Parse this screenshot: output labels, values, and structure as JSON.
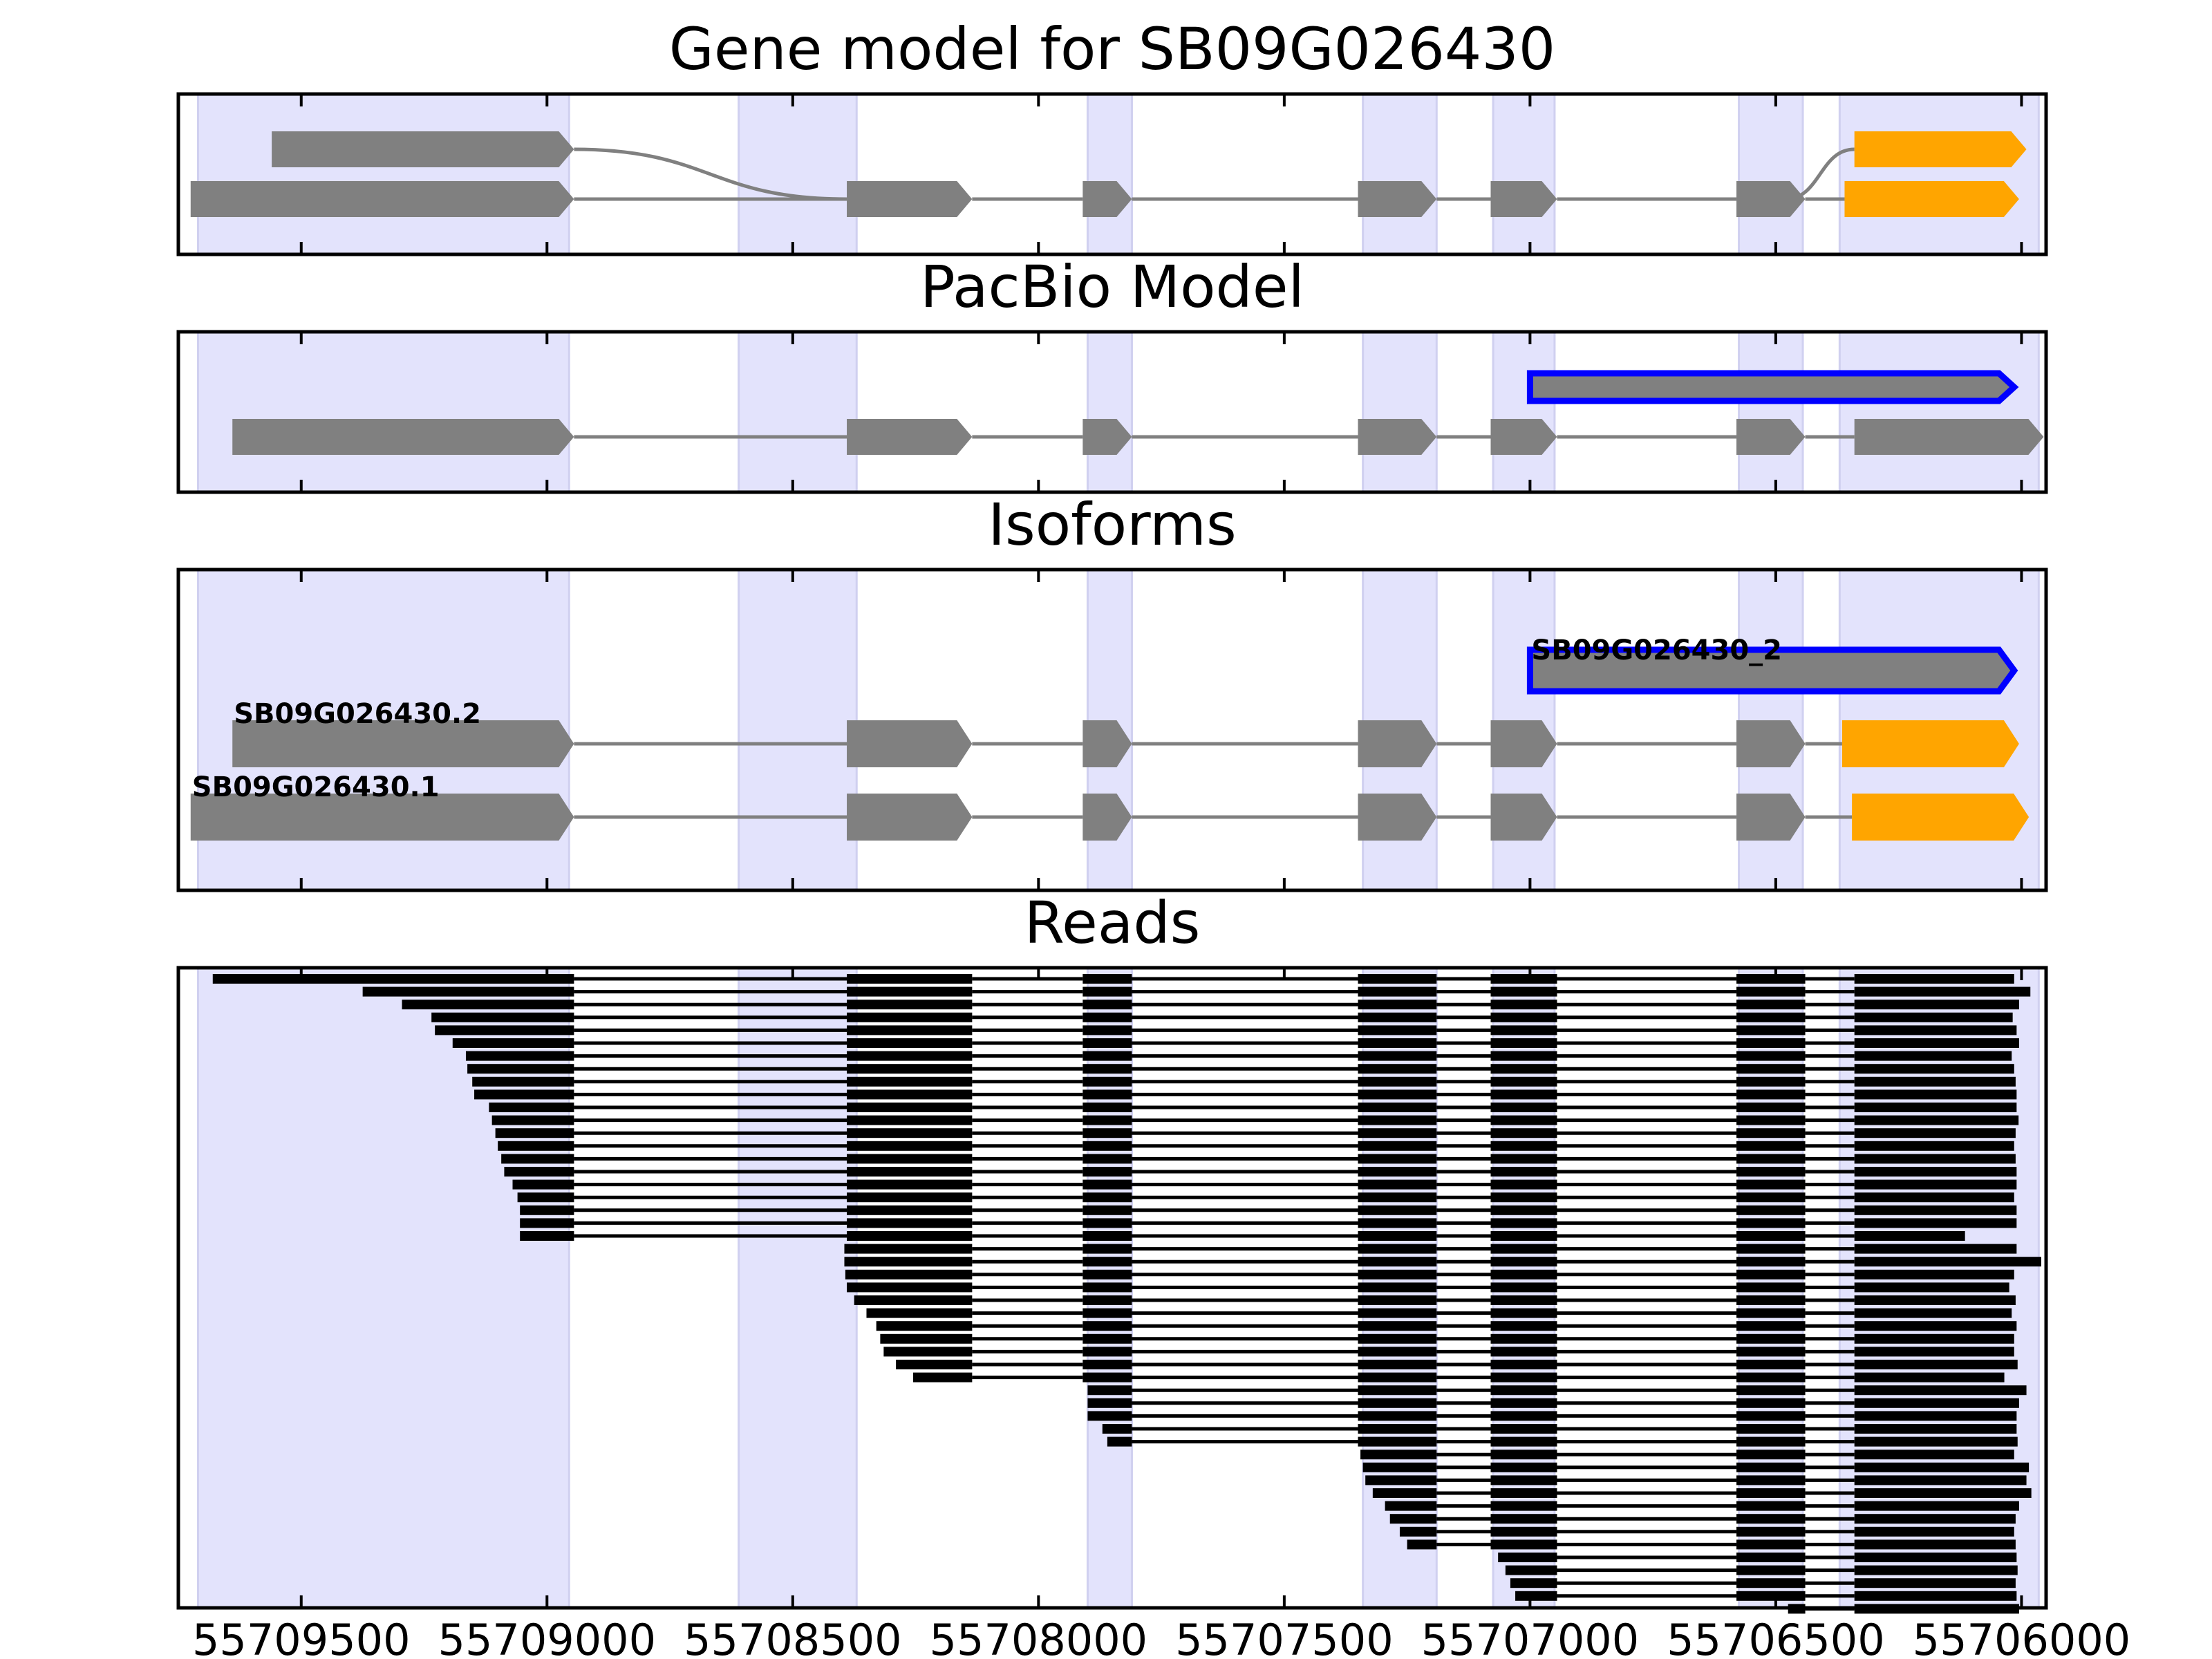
{
  "figure": {
    "colors": {
      "exon": "#808080",
      "utr": "#ffa500",
      "outline": "#0000ff",
      "band": "#e3e3fc",
      "read": "#000000"
    }
  },
  "chart_data": {
    "type": "gene-model-track",
    "xlim": [
      55709750,
      55705950
    ],
    "xticks": [
      55709500,
      55709000,
      55708500,
      55708000,
      55707500,
      55707000,
      55706500,
      55706000
    ],
    "xtick_labels": [
      "55709500",
      "55709000",
      "55708500",
      "55708000",
      "55707500",
      "55707000",
      "55706500",
      "55706000"
    ],
    "exon_bands": [
      [
        55709710,
        55708955
      ],
      [
        55708610,
        55708370
      ],
      [
        55707900,
        55707810
      ],
      [
        55707340,
        55707190
      ],
      [
        55707075,
        55706950
      ],
      [
        55706575,
        55706445
      ],
      [
        55706370,
        55705965
      ]
    ],
    "panels": [
      {
        "title": "Gene model for SB09G026430",
        "tracks": [
          {
            "row": 0,
            "start_y": 55709560,
            "exons": [
              {
                "s": 55709560,
                "e": 55708945,
                "c": "exon"
              },
              {
                "s": 55706340,
                "e": 55705990,
                "c": "utr"
              }
            ],
            "junctions": [
              {
                "from": 55708945,
                "to": 55708390,
                "row2": 1
              },
              {
                "from": 55706480,
                "to": 55706340,
                "row2": 0
              }
            ]
          },
          {
            "row": 1,
            "exons": [
              {
                "s": 55709725,
                "e": 55708945,
                "c": "exon"
              },
              {
                "s": 55708390,
                "e": 55708135,
                "c": "exon"
              },
              {
                "s": 55707910,
                "e": 55707810,
                "c": "exon"
              },
              {
                "s": 55707350,
                "e": 55707190,
                "c": "exon"
              },
              {
                "s": 55707080,
                "e": 55706945,
                "c": "exon"
              },
              {
                "s": 55706580,
                "e": 55706440,
                "c": "exon"
              },
              {
                "s": 55706360,
                "e": 55706005,
                "c": "utr"
              }
            ]
          }
        ]
      },
      {
        "title": "PacBio Model",
        "tracks": [
          {
            "row": 0,
            "outlined": true,
            "exons": [
              {
                "s": 55707000,
                "e": 55706015,
                "c": "exon"
              }
            ]
          },
          {
            "row": 1,
            "exons": [
              {
                "s": 55709640,
                "e": 55708945,
                "c": "exon"
              },
              {
                "s": 55708390,
                "e": 55708135,
                "c": "exon"
              },
              {
                "s": 55707910,
                "e": 55707810,
                "c": "exon"
              },
              {
                "s": 55707350,
                "e": 55707190,
                "c": "exon"
              },
              {
                "s": 55707080,
                "e": 55706945,
                "c": "exon"
              },
              {
                "s": 55706580,
                "e": 55706440,
                "c": "exon"
              },
              {
                "s": 55706340,
                "e": 55705955,
                "c": "exon"
              }
            ]
          }
        ]
      },
      {
        "title": "Isoforms",
        "isoforms": [
          {
            "name": "SB09G026430_2",
            "row": 0,
            "outlined": true,
            "exons": [
              {
                "s": 55707000,
                "e": 55706015,
                "c": "exon"
              }
            ]
          },
          {
            "name": "SB09G026430.2",
            "row": 1,
            "exons": [
              {
                "s": 55709640,
                "e": 55708945,
                "c": "exon"
              },
              {
                "s": 55708390,
                "e": 55708135,
                "c": "exon"
              },
              {
                "s": 55707910,
                "e": 55707810,
                "c": "exon"
              },
              {
                "s": 55707350,
                "e": 55707190,
                "c": "exon"
              },
              {
                "s": 55707080,
                "e": 55706945,
                "c": "exon"
              },
              {
                "s": 55706580,
                "e": 55706440,
                "c": "exon"
              },
              {
                "s": 55706365,
                "e": 55706005,
                "c": "utr"
              }
            ]
          },
          {
            "name": "SB09G026430.1",
            "row": 2,
            "exons": [
              {
                "s": 55709725,
                "e": 55708945,
                "c": "exon"
              },
              {
                "s": 55708390,
                "e": 55708135,
                "c": "exon"
              },
              {
                "s": 55707910,
                "e": 55707810,
                "c": "exon"
              },
              {
                "s": 55707350,
                "e": 55707190,
                "c": "exon"
              },
              {
                "s": 55707080,
                "e": 55706945,
                "c": "exon"
              },
              {
                "s": 55706580,
                "e": 55706440,
                "c": "exon"
              },
              {
                "s": 55706345,
                "e": 55705985,
                "c": "utr"
              }
            ]
          }
        ]
      },
      {
        "title": "Reads",
        "reads": {
          "exon_ends": [
            55708945,
            55708135,
            55707810,
            55707190,
            55706945,
            55706440
          ],
          "exon_starts_inner": [
            55708390,
            55707910,
            55707350,
            55707080,
            55706580,
            55706340
          ],
          "groups": [
            {
              "first_exon": 0,
              "starts": [
                55709680,
                55709375,
                55709295,
                55709235,
                55709228,
                55709192,
                55709165,
                55709162,
                55709152,
                55709148,
                55709118,
                55709112,
                55709105,
                55709100,
                55709093,
                55709087,
                55709070,
                55709060,
                55709055,
                55709055,
                55709055
              ],
              "ends": [
                55706015,
                55705982,
                55706005,
                55706018,
                55706010,
                55706005,
                55706020,
                55706015,
                55706012,
                55706010,
                55706010,
                55706006,
                55706012,
                55706015,
                55706012,
                55706010,
                55706010,
                55706015,
                55706010,
                55706010,
                55706115
              ]
            },
            {
              "first_exon": 1,
              "starts": [
                55708395,
                55708395,
                55708393,
                55708390,
                55708375,
                55708350,
                55708330,
                55708322,
                55708315,
                55708290,
                55708255
              ],
              "ends": [
                55706010,
                55705960,
                55706015,
                55706025,
                55706012,
                55706020,
                55706010,
                55706015,
                55706015,
                55706008,
                55706035
              ]
            },
            {
              "first_exon": 2,
              "starts": [
                55707900,
                55707900,
                55707900,
                55707870,
                55707860
              ],
              "ends": [
                55705990,
                55706005,
                55706010,
                55706010,
                55706008
              ]
            },
            {
              "first_exon": 3,
              "starts": [
                55707345,
                55707340,
                55707335,
                55707320,
                55707295,
                55707285,
                55707265,
                55707250
              ],
              "ends": [
                55706015,
                55705985,
                55705990,
                55705980,
                55706005,
                55706012,
                55706015,
                55706012
              ]
            },
            {
              "first_exon": 4,
              "starts": [
                55707065,
                55707050,
                55707040,
                55707030
              ],
              "ends": [
                55706010,
                55706008,
                55706012,
                55706010
              ]
            },
            {
              "first_exon": 5,
              "starts": [
                55706475
              ],
              "ends": [
                55706005
              ]
            }
          ]
        }
      }
    ]
  }
}
